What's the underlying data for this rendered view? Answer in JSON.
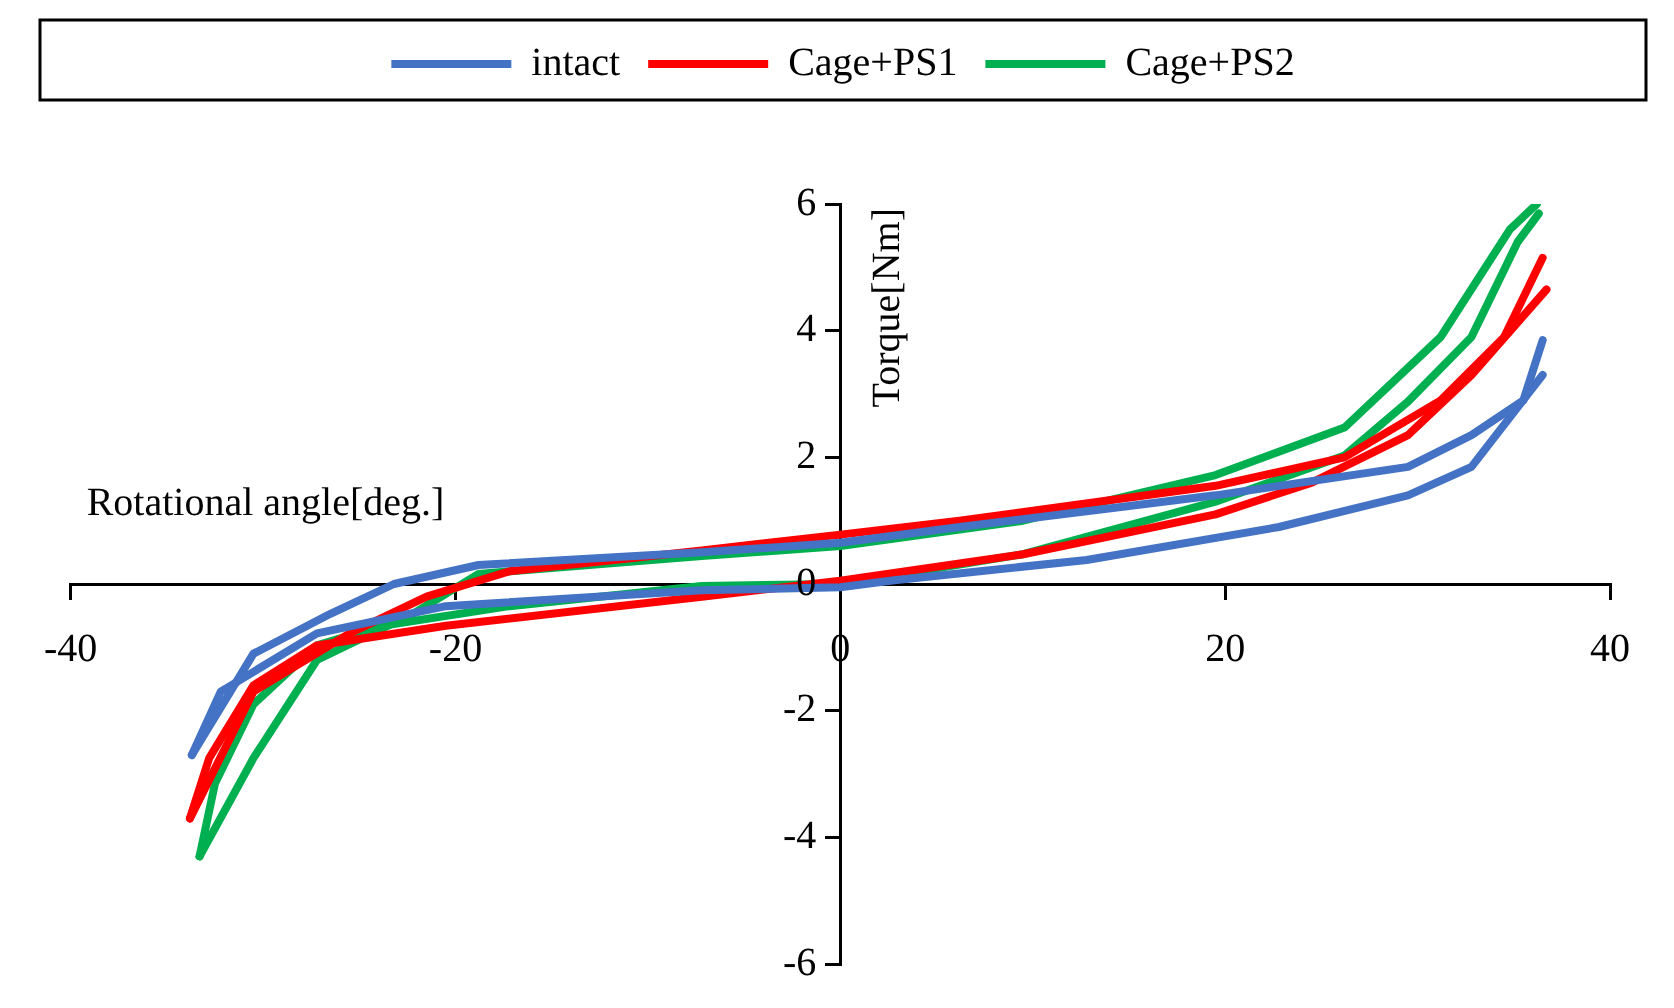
{
  "chart_data": {
    "type": "line",
    "xlabel": "Rotational angle[deg.]",
    "ylabel": "Torque[Nm]",
    "xlim": [
      -40,
      40
    ],
    "xticks": [
      -40,
      -20,
      0,
      20,
      40
    ],
    "ylim": [
      -6,
      6
    ],
    "yticks": [
      -6,
      -4,
      -2,
      0,
      2,
      4,
      6
    ],
    "grid": false,
    "legend": "top",
    "marker": "none",
    "line_style": "solid",
    "series": [
      {
        "name": "intact",
        "color": "#4472c4",
        "x": [
          -33.7,
          -30.5,
          -26.5,
          -23.2,
          -18.8,
          -7.2,
          0,
          6.2,
          19.5,
          29.5,
          32.8,
          35.5,
          36.5
        ],
        "values": [
          -2.7,
          -1.1,
          -0.47,
          0,
          0.3,
          0.5,
          0.65,
          0.9,
          1.4,
          1.85,
          2.35,
          2.9,
          3.85
        ]
      },
      {
        "color": "#4472c4",
        "x": [
          -33.7,
          -32.2,
          -27.2,
          -20.5,
          -7.2,
          0,
          2.8,
          12.8,
          22.8,
          29.5,
          32.8,
          36.5
        ],
        "values": [
          -2.7,
          -1.7,
          -0.78,
          -0.35,
          -0.1,
          -0.05,
          0.06,
          0.38,
          0.9,
          1.4,
          1.85,
          3.3
        ]
      },
      {
        "name": "Cage+PS1",
        "color": "#ff0000",
        "x": [
          -33.8,
          -30.5,
          -25.5,
          -21.5,
          -17.2,
          -7.2,
          0,
          6.2,
          19.5,
          26.2,
          31.2,
          34.5,
          36.5
        ],
        "values": [
          -3.7,
          -1.7,
          -0.78,
          -0.2,
          0.2,
          0.53,
          0.78,
          1.0,
          1.55,
          2.0,
          2.9,
          3.9,
          5.15
        ]
      },
      {
        "color": "#ff0000",
        "x": [
          -33.8,
          -32.8,
          -30.5,
          -27.2,
          -20.5,
          -7.2,
          0,
          9.5,
          19.5,
          24.5,
          29.5,
          32.8,
          36.7
        ],
        "values": [
          -3.7,
          -2.75,
          -1.6,
          -0.97,
          -0.66,
          -0.2,
          0.05,
          0.47,
          1.1,
          1.6,
          2.35,
          3.3,
          4.65
        ]
      },
      {
        "name": "Cage+PS2",
        "color": "#00b050",
        "x": [
          -33.3,
          -30.5,
          -27.2,
          -22.2,
          -18.8,
          -7.2,
          0,
          9.5,
          19.5,
          26.2,
          31.2,
          34.8,
          36.2
        ],
        "values": [
          -4.3,
          -2.75,
          -1.2,
          -0.47,
          0.16,
          0.44,
          0.6,
          1.0,
          1.72,
          2.47,
          3.9,
          5.6,
          6.0
        ]
      },
      {
        "color": "#00b050",
        "x": [
          -33.3,
          -32.5,
          -30.5,
          -27.2,
          -23.8,
          -17.2,
          -7.2,
          0,
          9.5,
          19.5,
          26.2,
          29.5,
          32.8,
          35.2,
          36.3
        ],
        "values": [
          -4.3,
          -3.15,
          -1.9,
          -0.97,
          -0.66,
          -0.35,
          -0.03,
          0,
          0.47,
          1.3,
          2.03,
          2.88,
          3.9,
          5.4,
          5.85
        ]
      }
    ]
  }
}
